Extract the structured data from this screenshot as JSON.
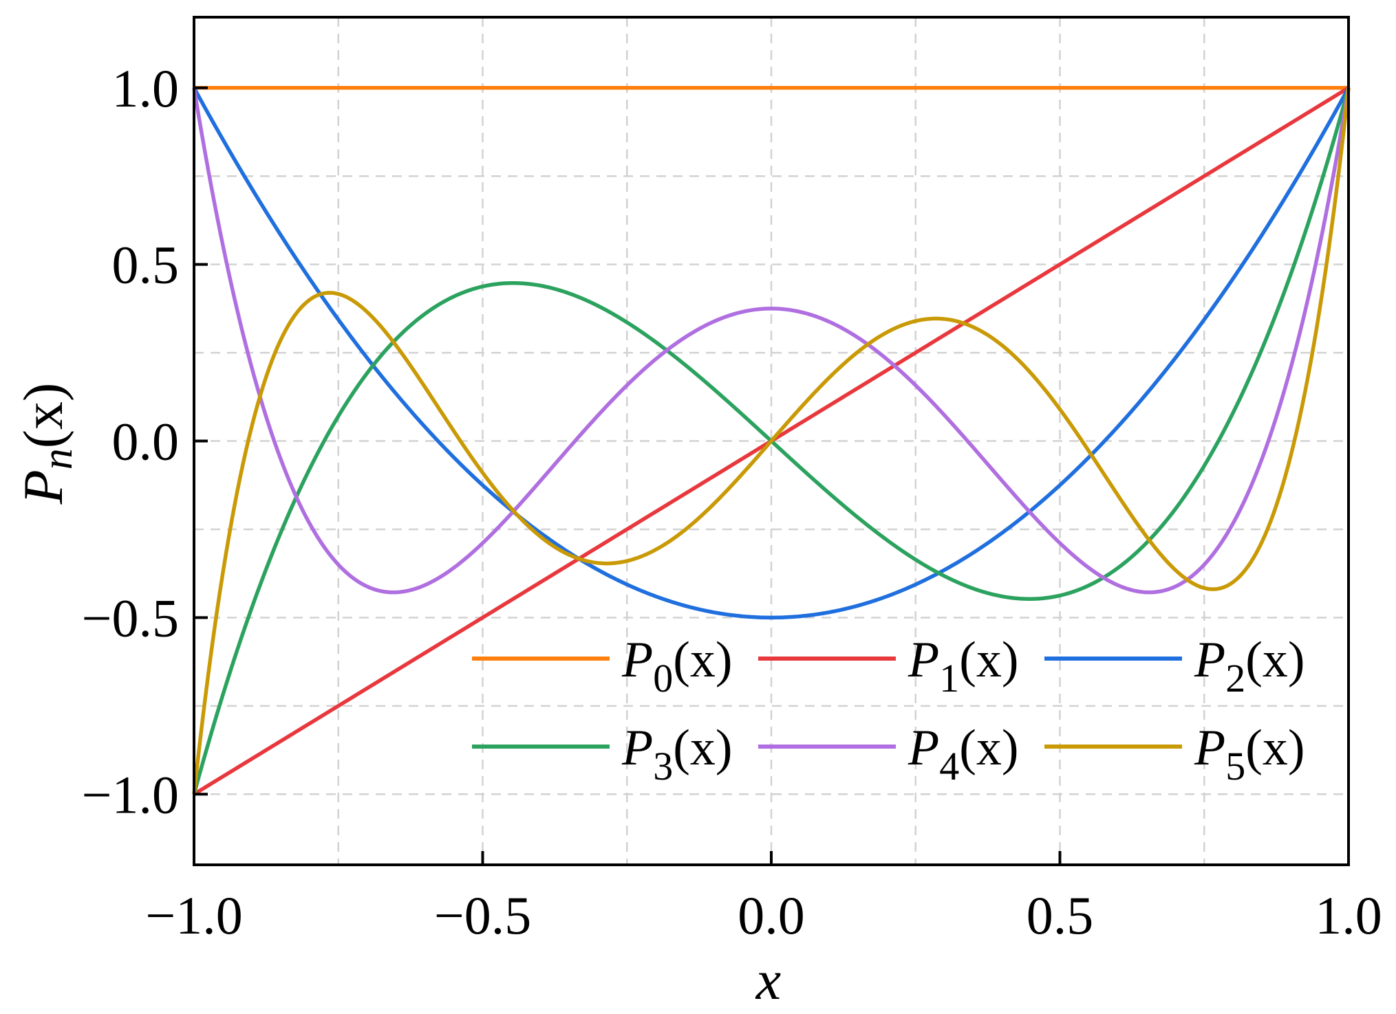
{
  "chart_data": {
    "type": "line",
    "xlabel": "x",
    "ylabel": "P_n(x)",
    "xlim": [
      -1.0,
      1.0
    ],
    "ylim": [
      -1.2,
      1.2
    ],
    "xticks": [
      -1.0,
      -0.5,
      0.0,
      0.5,
      1.0
    ],
    "xtick_labels": [
      "−1.0",
      "−0.5",
      "0.0",
      "0.5",
      "1.0"
    ],
    "yticks": [
      -1.0,
      -0.5,
      0.0,
      0.5,
      1.0
    ],
    "ytick_labels": [
      "−1.0",
      "−0.5",
      "0.0",
      "0.5",
      "1.0"
    ],
    "grid": true,
    "legend_position": "lower-right",
    "legend_columns": 3,
    "series": [
      {
        "name": "P_0(x)",
        "base": "P",
        "sub": "0",
        "arg": "(x)",
        "color": "#ff7f0e",
        "degree": 0
      },
      {
        "name": "P_1(x)",
        "base": "P",
        "sub": "1",
        "arg": "(x)",
        "color": "#e8383d",
        "degree": 1
      },
      {
        "name": "P_2(x)",
        "base": "P",
        "sub": "2",
        "arg": "(x)",
        "color": "#1f6fde",
        "degree": 2
      },
      {
        "name": "P_3(x)",
        "base": "P",
        "sub": "3",
        "arg": "(x)",
        "color": "#2ca25f",
        "degree": 3
      },
      {
        "name": "P_4(x)",
        "base": "P",
        "sub": "4",
        "arg": "(x)",
        "color": "#b06fe0",
        "degree": 4
      },
      {
        "name": "P_5(x)",
        "base": "P",
        "sub": "5",
        "arg": "(x)",
        "color": "#c99a06",
        "degree": 5
      }
    ],
    "x": [
      -1.0,
      -0.9,
      -0.8,
      -0.7,
      -0.6,
      -0.5,
      -0.4,
      -0.3,
      -0.2,
      -0.1,
      0.0,
      0.1,
      0.2,
      0.3,
      0.4,
      0.5,
      0.6,
      0.7,
      0.8,
      0.9,
      1.0
    ]
  },
  "labels": {
    "xlabel": "x",
    "ylabel_base": "P",
    "ylabel_sub": "n",
    "ylabel_arg": "(x)"
  }
}
